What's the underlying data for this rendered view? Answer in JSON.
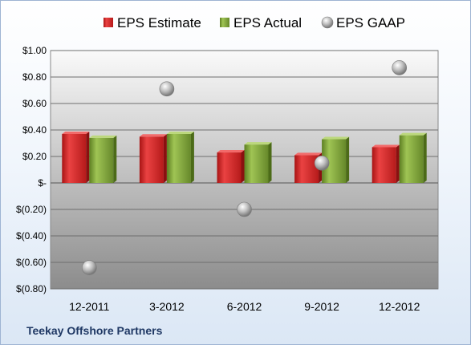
{
  "chart_data": {
    "type": "bar",
    "categories": [
      "12-2011",
      "3-2012",
      "6-2012",
      "9-2012",
      "12-2012"
    ],
    "series": [
      {
        "name": "EPS Estimate",
        "kind": "bar",
        "color": "#d42a2a",
        "values": [
          0.37,
          0.35,
          0.23,
          0.21,
          0.27
        ]
      },
      {
        "name": "EPS Actual",
        "kind": "bar",
        "color": "#7fa23a",
        "values": [
          0.34,
          0.37,
          0.29,
          0.33,
          0.36
        ]
      },
      {
        "name": "EPS GAAP",
        "kind": "scatter",
        "color": "#b8b8b8",
        "values": [
          -0.64,
          0.71,
          -0.2,
          0.15,
          0.87
        ]
      }
    ],
    "ylim": [
      -0.8,
      1.0
    ],
    "yticks": [
      {
        "value": 1.0,
        "label": "$1.00"
      },
      {
        "value": 0.8,
        "label": "$0.80"
      },
      {
        "value": 0.6,
        "label": "$0.60"
      },
      {
        "value": 0.4,
        "label": "$0.40"
      },
      {
        "value": 0.2,
        "label": "$0.20"
      },
      {
        "value": 0.0,
        "label": "$-"
      },
      {
        "value": -0.2,
        "label": "$(0.20)"
      },
      {
        "value": -0.4,
        "label": "$(0.40)"
      },
      {
        "value": -0.6,
        "label": "$(0.60)"
      },
      {
        "value": -0.8,
        "label": "$(0.80)"
      }
    ],
    "grid": true,
    "legend": "top"
  },
  "footer": {
    "caption": "Teekay Offshore Partners"
  }
}
